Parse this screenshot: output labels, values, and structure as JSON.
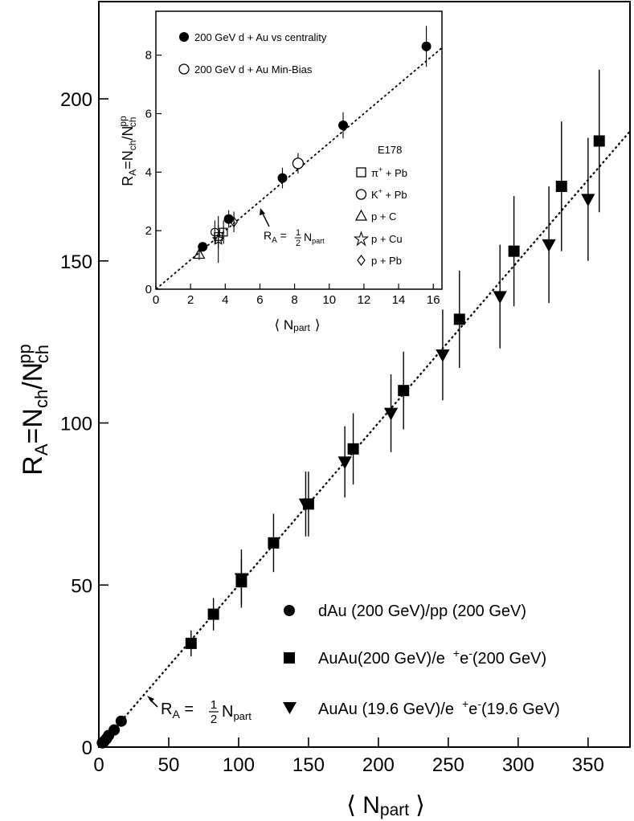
{
  "chart_data": [
    {
      "type": "scatter",
      "role": "main",
      "xlabel": "⟨ N",
      "xlabel_sub": "part",
      "xlabel_close": "⟩",
      "ylabel_prefix": "R",
      "ylabel_sub": "A",
      "ylabel_mid": "=N",
      "ylabel_sub2": "ch",
      "ylabel_slash": "/N",
      "ylabel_sup": "pp",
      "ylabel_sub3": "ch",
      "xlim": [
        0,
        380
      ],
      "ylim": [
        0,
        230
      ],
      "xticks": [
        "0",
        "50",
        "100",
        "150",
        "200",
        "250",
        "300",
        "350"
      ],
      "xtick_values": [
        0,
        50,
        100,
        150,
        200,
        250,
        300,
        350
      ],
      "yticks": [
        "0",
        "50",
        "100",
        "150",
        "200"
      ],
      "ytick_values": [
        0,
        50,
        100,
        150,
        200
      ],
      "fit_line": {
        "slope": 0.5,
        "x_range": [
          0,
          380
        ],
        "style": "dotted"
      },
      "annotation": {
        "pre": "R",
        "sub": "A",
        "eq": " = ",
        "num": "1",
        "den": "2",
        "post": "N",
        "post_sub": "part",
        "x": 35,
        "y": 15
      },
      "series": [
        {
          "name": "dAu (200 GeV)/pp (200 GeV)",
          "marker": "circle-filled",
          "points": [
            [
              2.5,
              1.3
            ],
            [
              3.5,
              1.6
            ],
            [
              4,
              1.9
            ],
            [
              5.5,
              2.6
            ],
            [
              7,
              3.6
            ],
            [
              11,
              5.3
            ],
            [
              16,
              8
            ]
          ],
          "yerr": [
            0.1,
            0.1,
            0.1,
            0.2,
            0.2,
            0.3,
            0.4
          ]
        },
        {
          "name_pre": "AuAu(200 GeV)/e",
          "name_sup": "+",
          "name_mid": "e",
          "name_sup2": "-",
          "name_post": "(200 GeV)",
          "marker": "square-filled",
          "points": [
            [
              66,
              32
            ],
            [
              82,
              41
            ],
            [
              102,
              51
            ],
            [
              125,
              63
            ],
            [
              150,
              75
            ],
            [
              182,
              92
            ],
            [
              218,
              110
            ],
            [
              258,
              132
            ],
            [
              297,
              153
            ],
            [
              331,
              173
            ],
            [
              358,
              187
            ]
          ],
          "yerr": [
            4,
            5,
            7,
            9,
            10,
            11,
            12,
            15,
            17,
            20,
            22
          ]
        },
        {
          "name_pre": "AuAu (19.6 GeV)/e",
          "name_sup": "+",
          "name_mid": "e",
          "name_sup2": "-",
          "name_post": "(19.6 GeV)",
          "marker": "triangle-down-filled",
          "points": [
            [
              102,
              52
            ],
            [
              148,
              75
            ],
            [
              176,
              88
            ],
            [
              209,
              103
            ],
            [
              246,
              121
            ],
            [
              287,
              139
            ],
            [
              322,
              155
            ],
            [
              350,
              169
            ]
          ],
          "yerr": [
            9,
            10,
            11,
            12,
            14,
            16,
            18,
            19
          ]
        }
      ]
    },
    {
      "type": "scatter",
      "role": "inset",
      "xlabel": "⟨ N",
      "xlabel_sub": "part",
      "xlabel_close": "⟩",
      "ylabel_prefix": "R",
      "ylabel_sub": "A",
      "ylabel_mid": "=N",
      "ylabel_sub2": "ch",
      "ylabel_slash": "/N",
      "ylabel_sup": "pp",
      "ylabel_sub3": "ch",
      "xlim": [
        0,
        16.5
      ],
      "ylim": [
        0,
        9.5
      ],
      "xticks": [
        "0",
        "2",
        "4",
        "6",
        "8",
        "10",
        "12",
        "14",
        "16"
      ],
      "xtick_values": [
        0,
        2,
        4,
        6,
        8,
        10,
        12,
        14,
        16
      ],
      "yticks": [
        "0",
        "2",
        "4",
        "6",
        "8"
      ],
      "ytick_values": [
        0,
        2,
        4,
        6,
        8
      ],
      "fit_line": {
        "slope": 0.5,
        "x_range": [
          0,
          16.5
        ],
        "style": "dotted"
      },
      "annotation": {
        "pre": "R",
        "sub": "A",
        "eq": " = ",
        "num": "1",
        "den": "2",
        "post": "N",
        "post_sub": "part",
        "x": 6,
        "y": 2.1
      },
      "legend_title": "E178",
      "series": [
        {
          "name": "200 GeV d + Au vs centrality",
          "marker": "circle-filled",
          "points": [
            [
              2.7,
              1.45
            ],
            [
              4.2,
              2.4
            ],
            [
              7.3,
              3.8
            ],
            [
              10.8,
              5.6
            ],
            [
              15.6,
              8.3
            ]
          ],
          "yerr": [
            0.15,
            0.3,
            0.35,
            0.45,
            0.7
          ]
        },
        {
          "name": "200 GeV d + Au  Min-Bias",
          "marker": "circle-open",
          "points": [
            [
              8.2,
              4.3
            ]
          ],
          "yerr": [
            0.35
          ]
        },
        {
          "name_pre": "π",
          "name_sup": "+",
          "name_post": " + Pb",
          "marker": "square-open",
          "points": [
            [
              3.6,
              1.8
            ],
            [
              3.9,
              1.95
            ]
          ],
          "yerr": [
            0.4,
            0.4
          ]
        },
        {
          "name_pre": "K",
          "name_sup": "+",
          "name_post": " + Pb",
          "marker": "circle-open-small",
          "points": [
            [
              3.4,
              1.95
            ]
          ],
          "yerr": [
            0.4
          ]
        },
        {
          "name": "p + C",
          "marker": "triangle-open",
          "points": [
            [
              2.5,
              1.2
            ]
          ],
          "yerr": [
            0.2
          ]
        },
        {
          "name": "p + Cu",
          "marker": "star-open",
          "points": [
            [
              3.6,
              1.7
            ]
          ],
          "yerr": [
            0.8
          ]
        },
        {
          "name": "p + Pb",
          "marker": "diamond-open",
          "points": [
            [
              4.5,
              2.3
            ]
          ],
          "yerr": [
            0.35
          ]
        }
      ]
    }
  ]
}
